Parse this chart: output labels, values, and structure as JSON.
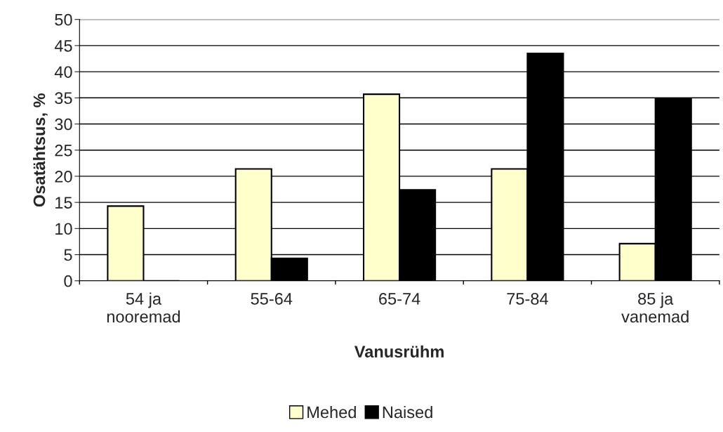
{
  "chart_data": {
    "type": "bar",
    "xlabel": "Vanusrühm",
    "ylabel": "Osatähtsus, %",
    "categories": [
      "54 ja\nnooremad",
      "55-64",
      "65-74",
      "75-84",
      "85 ja\nvanemad"
    ],
    "series": [
      {
        "name": "Mehed",
        "color": "#ffffcc",
        "values": [
          14.3,
          21.4,
          35.7,
          21.4,
          7.1
        ]
      },
      {
        "name": "Naised",
        "color": "#000000",
        "values": [
          0,
          4.3,
          17.4,
          43.5,
          34.8
        ]
      }
    ],
    "ylim": [
      0,
      50
    ],
    "yticks": [
      0,
      5,
      10,
      15,
      20,
      25,
      30,
      35,
      40,
      45,
      50
    ],
    "grid": "y",
    "legend": "bottom"
  }
}
